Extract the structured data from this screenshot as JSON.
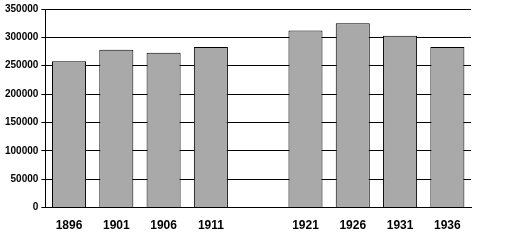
{
  "chart_data": {
    "type": "bar",
    "categories": [
      "1896",
      "1901",
      "1906",
      "1911",
      null,
      "1921",
      "1926",
      "1931",
      "1936"
    ],
    "values": [
      258000,
      278000,
      273000,
      283000,
      null,
      312000,
      325000,
      303000,
      283000
    ],
    "color": "#a9a9a9",
    "ylim": [
      0,
      350000
    ],
    "yticks": [
      0,
      50000,
      100000,
      150000,
      200000,
      250000,
      300000,
      350000
    ],
    "grid": true
  }
}
